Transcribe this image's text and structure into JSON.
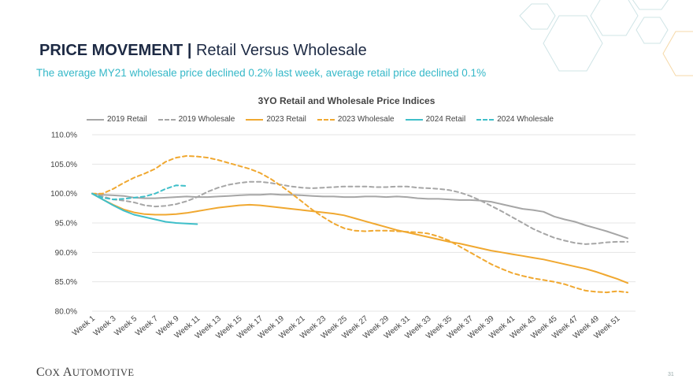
{
  "header": {
    "title_bold": "PRICE MOVEMENT",
    "separator": "|",
    "title_rest": "Retail Versus Wholesale",
    "subtitle": "The average MY21 wholesale price declined 0.2% last week, average retail price declined 0.1%"
  },
  "footer": {
    "logo_part1": "C",
    "logo_part2": "OX ",
    "logo_part3": "A",
    "logo_part4": "UTOMOTIVE",
    "page_number": "31"
  },
  "colors": {
    "title": "#1d2a44",
    "subtitle": "#35b8c8",
    "gray": "#a6a6a6",
    "orange": "#f0a830",
    "teal": "#3fbfc9",
    "hex_teal": "#cfe4e6",
    "hex_orange": "#f6d9a8"
  },
  "chart_data": {
    "type": "line",
    "title": "3YO Retail and Wholesale Price Indices",
    "ylim": [
      80,
      110
    ],
    "yticks": [
      "80.0%",
      "85.0%",
      "90.0%",
      "95.0%",
      "100.0%",
      "105.0%",
      "110.0%"
    ],
    "ytick_values": [
      80,
      85,
      90,
      95,
      100,
      105,
      110
    ],
    "x_weeks": 52,
    "xtick_labels": [
      "Week 1",
      "Week 3",
      "Week 5",
      "Week 7",
      "Week 9",
      "Week 11",
      "Week 13",
      "Week 15",
      "Week 17",
      "Week 19",
      "Week 21",
      "Week 23",
      "Week 25",
      "Week 27",
      "Week 29",
      "Week 31",
      "Week 33",
      "Week 35",
      "Week 37",
      "Week 39",
      "Week 41",
      "Week 43",
      "Week 45",
      "Week 47",
      "Week 49",
      "Week 51"
    ],
    "legend_position": "top",
    "grid": true,
    "series": [
      {
        "name": "2019 Retail",
        "color": "#a6a6a6",
        "dash": false,
        "values": [
          100,
          99.8,
          99.7,
          99.6,
          99.3,
          99.2,
          99.2,
          99.3,
          99.4,
          99.5,
          99.4,
          99.4,
          99.5,
          99.6,
          99.7,
          99.8,
          99.8,
          99.9,
          99.8,
          99.8,
          99.7,
          99.6,
          99.5,
          99.5,
          99.4,
          99.4,
          99.5,
          99.5,
          99.4,
          99.5,
          99.4,
          99.2,
          99.1,
          99.1,
          99.0,
          98.9,
          98.9,
          98.8,
          98.6,
          98.2,
          97.8,
          97.4,
          97.2,
          96.9,
          96.1,
          95.6,
          95.2,
          94.6,
          94.1,
          93.6,
          93.0,
          92.4
        ]
      },
      {
        "name": "2019 Wholesale",
        "color": "#a6a6a6",
        "dash": true,
        "values": [
          100,
          99.5,
          99.0,
          98.8,
          98.5,
          98.0,
          97.8,
          97.9,
          98.2,
          98.7,
          99.4,
          100.3,
          101.0,
          101.5,
          101.8,
          102.0,
          102.0,
          101.8,
          101.5,
          101.2,
          101.0,
          100.9,
          101.0,
          101.1,
          101.2,
          101.2,
          101.2,
          101.1,
          101.1,
          101.2,
          101.2,
          101.0,
          100.9,
          100.8,
          100.6,
          100.2,
          99.6,
          98.8,
          97.9,
          97.0,
          96.0,
          95.0,
          94.0,
          93.2,
          92.5,
          92.0,
          91.6,
          91.4,
          91.5,
          91.7,
          91.8,
          91.8
        ]
      },
      {
        "name": "2023 Retail",
        "color": "#f0a830",
        "dash": false,
        "values": [
          100,
          99.0,
          98.1,
          97.3,
          96.8,
          96.5,
          96.4,
          96.4,
          96.5,
          96.7,
          97.0,
          97.3,
          97.6,
          97.8,
          98.0,
          98.1,
          98.0,
          97.8,
          97.6,
          97.4,
          97.2,
          97.0,
          96.8,
          96.6,
          96.3,
          95.8,
          95.3,
          94.8,
          94.3,
          93.8,
          93.4,
          93.0,
          92.6,
          92.2,
          91.8,
          91.5,
          91.1,
          90.7,
          90.3,
          90.0,
          89.7,
          89.4,
          89.1,
          88.8,
          88.4,
          88.0,
          87.6,
          87.2,
          86.7,
          86.1,
          85.5,
          84.8
        ]
      },
      {
        "name": "2023 Wholesale",
        "color": "#f0a830",
        "dash": true,
        "values": [
          100,
          100.0,
          100.8,
          101.8,
          102.7,
          103.4,
          104.2,
          105.4,
          106.1,
          106.4,
          106.3,
          106.1,
          105.7,
          105.2,
          104.7,
          104.2,
          103.5,
          102.5,
          101.3,
          100.0,
          98.6,
          97.2,
          96.0,
          94.9,
          94.1,
          93.7,
          93.6,
          93.7,
          93.7,
          93.6,
          93.5,
          93.4,
          93.2,
          92.7,
          92.0,
          91.0,
          90.0,
          89.0,
          88.0,
          87.2,
          86.5,
          86.0,
          85.6,
          85.3,
          85.0,
          84.6,
          84.0,
          83.5,
          83.3,
          83.2,
          83.4,
          83.2
        ]
      },
      {
        "name": "2024 Retail",
        "color": "#3fbfc9",
        "dash": false,
        "values": [
          100,
          99.0,
          98.0,
          97.1,
          96.4,
          96.0,
          95.6,
          95.2,
          95.0,
          94.9,
          94.8
        ]
      },
      {
        "name": "2024 Wholesale",
        "color": "#3fbfc9",
        "dash": true,
        "values": [
          100,
          99.3,
          99.0,
          99.1,
          99.3,
          99.5,
          100.0,
          100.8,
          101.4,
          101.3
        ]
      }
    ]
  }
}
